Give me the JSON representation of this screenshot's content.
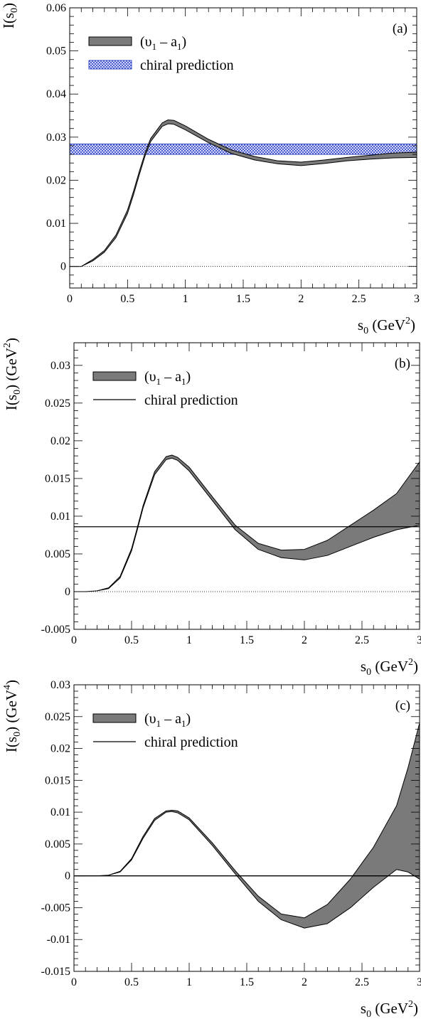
{
  "chart_data": [
    {
      "panel_label": "(a)",
      "type": "area",
      "ylabel": "I(s0)",
      "ylabel_parts": {
        "main": "I(s",
        "sub": "0",
        "close": ")",
        "unit": ""
      },
      "xlabel_parts": {
        "main": "s",
        "sub": "0",
        "unit": "(GeV",
        "sup": "2",
        "close": ")"
      },
      "xlim": [
        0,
        3
      ],
      "ylim": [
        -0.005,
        0.06
      ],
      "xticks": [
        0,
        0.5,
        1,
        1.5,
        2,
        2.5,
        3
      ],
      "xtick_labels": [
        "0",
        "0.5",
        "1",
        "1.5",
        "2",
        "2.5",
        "3"
      ],
      "yticks": [
        0,
        0.01,
        0.02,
        0.03,
        0.04,
        0.05,
        0.06
      ],
      "ytick_labels": [
        "0",
        "0.01",
        "0.02",
        "0.03",
        "0.04",
        "0.05",
        "0.06"
      ],
      "zero_line": true,
      "legend": {
        "entries": [
          {
            "kind": "band",
            "text": "(v1 – a1)",
            "parts": {
              "main": "(υ",
              "sub": "1",
              "rest": " – a",
              "sub2": "1",
              "close": ")"
            }
          },
          {
            "kind": "hatched",
            "text": "chiral prediction"
          }
        ]
      },
      "series": [
        {
          "name": "(v1 – a1)",
          "x": [
            0,
            0.1,
            0.2,
            0.3,
            0.4,
            0.5,
            0.55,
            0.6,
            0.65,
            0.7,
            0.8,
            0.85,
            0.9,
            1.0,
            1.2,
            1.4,
            1.6,
            1.8,
            2.0,
            2.2,
            2.4,
            2.6,
            2.8,
            3.0
          ],
          "lower": [
            0,
            0.0,
            0.0013,
            0.0033,
            0.0067,
            0.0123,
            0.0165,
            0.0211,
            0.0255,
            0.029,
            0.0325,
            0.0331,
            0.033,
            0.0317,
            0.0287,
            0.0262,
            0.0247,
            0.0238,
            0.0234,
            0.0239,
            0.0245,
            0.0249,
            0.0252,
            0.0253
          ],
          "upper": [
            0,
            0.0,
            0.0016,
            0.0037,
            0.0073,
            0.0131,
            0.0173,
            0.0219,
            0.0262,
            0.0297,
            0.0333,
            0.034,
            0.0339,
            0.0326,
            0.0295,
            0.027,
            0.0255,
            0.0245,
            0.0242,
            0.0247,
            0.0253,
            0.0258,
            0.0263,
            0.0265
          ]
        }
      ],
      "reference": {
        "name": "chiral prediction",
        "kind": "hatched-band",
        "low": 0.026,
        "high": 0.0284,
        "color": "#2f43c8"
      }
    },
    {
      "panel_label": "(b)",
      "type": "area",
      "ylabel": "I(s0) (GeV2)",
      "ylabel_parts": {
        "main": "I(s",
        "sub": "0",
        "close": ")",
        "unit": "(GeV",
        "sup": "2",
        "unitclose": ")"
      },
      "xlabel_parts": {
        "main": "s",
        "sub": "0",
        "unit": "(GeV",
        "sup": "2",
        "close": ")"
      },
      "xlim": [
        0,
        3
      ],
      "ylim": [
        -0.005,
        0.033
      ],
      "xticks": [
        0,
        0.5,
        1,
        1.5,
        2,
        2.5,
        3
      ],
      "xtick_labels": [
        "0",
        "0.5",
        "1",
        "1.5",
        "2",
        "2.5",
        "3"
      ],
      "yticks": [
        -0.005,
        0,
        0.005,
        0.01,
        0.015,
        0.02,
        0.025,
        0.03
      ],
      "ytick_labels": [
        "-0.005",
        "0",
        "0.005",
        "0.01",
        "0.015",
        "0.02",
        "0.025",
        "0.03"
      ],
      "zero_line": true,
      "legend": {
        "entries": [
          {
            "kind": "band",
            "text": "(v1 – a1)",
            "parts": {
              "main": "(υ",
              "sub": "1",
              "rest": " – a",
              "sub2": "1",
              "close": ")"
            }
          },
          {
            "kind": "line",
            "text": "chiral prediction"
          }
        ]
      },
      "series": [
        {
          "name": "(v1 – a1)",
          "x": [
            0,
            0.1,
            0.2,
            0.3,
            0.4,
            0.5,
            0.55,
            0.6,
            0.7,
            0.8,
            0.85,
            0.9,
            1.0,
            1.2,
            1.4,
            1.6,
            1.8,
            2.0,
            2.2,
            2.4,
            2.6,
            2.8,
            3.0
          ],
          "lower": [
            0,
            0.0,
            0.0001,
            0.0004,
            0.0018,
            0.0054,
            0.0082,
            0.0111,
            0.0155,
            0.0175,
            0.0177,
            0.0174,
            0.016,
            0.0121,
            0.0082,
            0.0056,
            0.0045,
            0.0042,
            0.0048,
            0.006,
            0.0072,
            0.0082,
            0.0088
          ],
          "upper": [
            0,
            0.0,
            0.0001,
            0.0005,
            0.002,
            0.0057,
            0.0085,
            0.0114,
            0.0159,
            0.0179,
            0.0181,
            0.0178,
            0.0165,
            0.0126,
            0.0088,
            0.0064,
            0.0055,
            0.0056,
            0.0068,
            0.0088,
            0.0108,
            0.013,
            0.0172
          ]
        }
      ],
      "reference": {
        "name": "chiral prediction",
        "kind": "line",
        "value": 0.0086
      }
    },
    {
      "panel_label": "(c)",
      "type": "area",
      "ylabel": "I(s0) (GeV4)",
      "ylabel_parts": {
        "main": "I(s",
        "sub": "0",
        "close": ")",
        "unit": "(GeV",
        "sup": "4",
        "unitclose": ")"
      },
      "xlabel_parts": {
        "main": "s",
        "sub": "0",
        "unit": "(GeV",
        "sup": "2",
        "close": ")"
      },
      "xlim": [
        0,
        3
      ],
      "ylim": [
        -0.015,
        0.03
      ],
      "xticks": [
        0,
        0.5,
        1,
        1.5,
        2,
        2.5,
        3
      ],
      "xtick_labels": [
        "0",
        "0.5",
        "1",
        "1.5",
        "2",
        "2.5",
        "3"
      ],
      "yticks": [
        -0.015,
        -0.01,
        -0.005,
        0,
        0.005,
        0.01,
        0.015,
        0.02,
        0.025,
        0.03
      ],
      "ytick_labels": [
        "-0.015",
        "-0.01",
        "-0.005",
        "0",
        "0.005",
        "0.01",
        "0.015",
        "0.02",
        "0.025",
        "0.03"
      ],
      "zero_line": false,
      "legend": {
        "entries": [
          {
            "kind": "band",
            "text": "(v1 – a1)",
            "parts": {
              "main": "(υ",
              "sub": "1",
              "rest": " – a",
              "sub2": "1",
              "close": ")"
            }
          },
          {
            "kind": "line",
            "text": "chiral prediction"
          }
        ]
      },
      "series": [
        {
          "name": "(v1 – a1)",
          "x": [
            0,
            0.2,
            0.3,
            0.4,
            0.5,
            0.6,
            0.7,
            0.8,
            0.85,
            0.9,
            1.0,
            1.2,
            1.4,
            1.6,
            1.8,
            2.0,
            2.2,
            2.4,
            2.6,
            2.8,
            2.9,
            3.0
          ],
          "lower": [
            0,
            0.0,
            0.0001,
            0.0006,
            0.0025,
            0.0059,
            0.0087,
            0.01,
            0.0101,
            0.0099,
            0.0088,
            0.0048,
            0.0003,
            -0.004,
            -0.0069,
            -0.0082,
            -0.0075,
            -0.005,
            -0.0018,
            0.001,
            0.0006,
            -0.0005
          ],
          "upper": [
            0,
            0.0,
            0.0001,
            0.0007,
            0.0027,
            0.0062,
            0.009,
            0.0102,
            0.0103,
            0.0102,
            0.0091,
            0.0052,
            0.0008,
            -0.0032,
            -0.006,
            -0.0066,
            -0.0045,
            -0.0005,
            0.0045,
            0.011,
            0.017,
            0.024
          ]
        }
      ],
      "reference": {
        "name": "chiral prediction",
        "kind": "line",
        "value": 0.0
      }
    }
  ]
}
